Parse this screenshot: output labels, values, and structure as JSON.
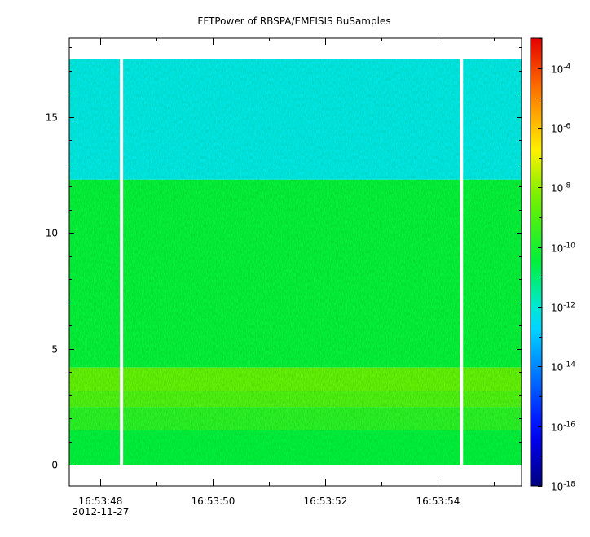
{
  "chart_data": {
    "type": "heatmap",
    "title": "FFTPower of RBSPA/EMFISIS  BuSamples",
    "xlabel": "",
    "ylabel": "",
    "x_ticks": [
      {
        "label": "16:53:48",
        "sublabel": "2012-11-27",
        "t": 48
      },
      {
        "label": "16:53:50",
        "t": 50
      },
      {
        "label": "16:53:52",
        "t": 52
      },
      {
        "label": "16:53:54",
        "t": 54
      }
    ],
    "xlim_seconds": [
      47.45,
      55.5
    ],
    "y_ticks": [
      0,
      5,
      10,
      15
    ],
    "ylim": [
      -0.9,
      18.4
    ],
    "data_extent": {
      "y": [
        0.0,
        17.5
      ]
    },
    "data_gaps_seconds": [
      48.38,
      54.43
    ],
    "colorbar": {
      "scale": "log",
      "range": [
        1e-18,
        0.001
      ],
      "ticks": [
        {
          "base": "10",
          "exp": "-4",
          "value": 0.0001
        },
        {
          "base": "10",
          "exp": "-6",
          "value": 1e-06
        },
        {
          "base": "10",
          "exp": "-8",
          "value": 1e-08
        },
        {
          "base": "10",
          "exp": "-10",
          "value": 1e-10
        },
        {
          "base": "10",
          "exp": "-12",
          "value": 1e-12
        },
        {
          "base": "10",
          "exp": "-14",
          "value": 1e-14
        },
        {
          "base": "10",
          "exp": "-16",
          "value": 1e-16
        },
        {
          "base": "10",
          "exp": "-18",
          "value": 1e-18
        }
      ]
    },
    "bands": [
      {
        "y": [
          12.3,
          17.5
        ],
        "log_power": -12.2
      },
      {
        "y": [
          4.2,
          12.3
        ],
        "log_power": -10.4
      },
      {
        "y": [
          3.2,
          4.2
        ],
        "log_power": -8.6
      },
      {
        "y": [
          2.5,
          3.2
        ],
        "log_power": -9.0
      },
      {
        "y": [
          1.5,
          2.5
        ],
        "log_power": -9.7
      },
      {
        "y": [
          0.0,
          1.5
        ],
        "log_power": -10.5
      }
    ]
  }
}
